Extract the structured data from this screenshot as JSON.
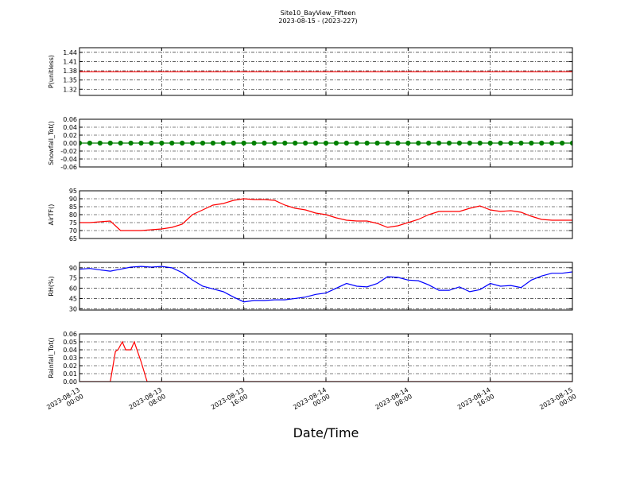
{
  "title": "Site10_BayView_Fifteen",
  "subtitle": "2023-08-15 - (2023-227)",
  "xlabel": "Date/Time",
  "xlim": [
    "2023-08-13 00:00",
    "2023-08-15 00:00"
  ],
  "xticks": [
    "2023-08-13 00:00",
    "2023-08-13 08:00",
    "2023-08-13 16:00",
    "2023-08-14 00:00",
    "2023-08-14 08:00",
    "2023-08-14 16:00",
    "2023-08-15 00:00"
  ],
  "grid": true,
  "x": [
    "2023-08-13 00:00",
    "2023-08-13 01:00",
    "2023-08-13 02:00",
    "2023-08-13 03:00",
    "2023-08-13 04:00",
    "2023-08-13 05:00",
    "2023-08-13 06:00",
    "2023-08-13 07:00",
    "2023-08-13 08:00",
    "2023-08-13 09:00",
    "2023-08-13 10:00",
    "2023-08-13 11:00",
    "2023-08-13 12:00",
    "2023-08-13 13:00",
    "2023-08-13 14:00",
    "2023-08-13 15:00",
    "2023-08-13 16:00",
    "2023-08-13 17:00",
    "2023-08-13 18:00",
    "2023-08-13 19:00",
    "2023-08-13 20:00",
    "2023-08-13 21:00",
    "2023-08-13 22:00",
    "2023-08-13 23:00",
    "2023-08-14 00:00",
    "2023-08-14 01:00",
    "2023-08-14 02:00",
    "2023-08-14 03:00",
    "2023-08-14 04:00",
    "2023-08-14 05:00",
    "2023-08-14 06:00",
    "2023-08-14 07:00",
    "2023-08-14 08:00",
    "2023-08-14 09:00",
    "2023-08-14 10:00",
    "2023-08-14 11:00",
    "2023-08-14 12:00",
    "2023-08-14 13:00",
    "2023-08-14 14:00",
    "2023-08-14 15:00",
    "2023-08-14 16:00",
    "2023-08-14 17:00",
    "2023-08-14 18:00",
    "2023-08-14 19:00",
    "2023-08-14 20:00",
    "2023-08-14 21:00",
    "2023-08-14 22:00",
    "2023-08-14 23:00",
    "2023-08-15 00:00"
  ],
  "chart_data": [
    {
      "type": "line",
      "ylabel": "P(unitless)",
      "ylim": [
        1.3,
        1.455
      ],
      "yticks": [
        1.32,
        1.35,
        1.38,
        1.41,
        1.44
      ],
      "series": [
        {
          "color": "#ff0000",
          "values": [
            1.377,
            1.377,
            1.377,
            1.377,
            1.377,
            1.377,
            1.377,
            1.377,
            1.377,
            1.377,
            1.377,
            1.377,
            1.377,
            1.377,
            1.377,
            1.377,
            1.377,
            1.377,
            1.377,
            1.377,
            1.377,
            1.377,
            1.377,
            1.377,
            1.377,
            1.377,
            1.377,
            1.377,
            1.377,
            1.377,
            1.377,
            1.377,
            1.377,
            1.377,
            1.377,
            1.377,
            1.377,
            1.377,
            1.377,
            1.377,
            1.377,
            1.377,
            1.377,
            1.377,
            1.377,
            1.377,
            1.377,
            1.377,
            1.377
          ]
        }
      ]
    },
    {
      "type": "line",
      "ylabel": "Snowfall_Tot()",
      "ylim": [
        -0.06,
        0.06
      ],
      "yticks": [
        -0.06,
        -0.04,
        -0.02,
        {
          "value": 0,
          "label": "0.00"
        },
        0.02,
        0.04,
        0.06
      ],
      "markers": true,
      "series": [
        {
          "color": "#008000",
          "values": [
            0,
            0,
            0,
            0,
            0,
            0,
            0,
            0,
            0,
            0,
            0,
            0,
            0,
            0,
            0,
            0,
            0,
            0,
            0,
            0,
            0,
            0,
            0,
            0,
            0,
            0,
            0,
            0,
            0,
            0,
            0,
            0,
            0,
            0,
            0,
            0,
            0,
            0,
            0,
            0,
            0,
            0,
            0,
            0,
            0,
            0,
            0,
            0,
            0
          ]
        }
      ]
    },
    {
      "type": "line",
      "ylabel": "AirTF()",
      "ylim": [
        65,
        95
      ],
      "yticks": [
        65,
        70,
        75,
        80,
        85,
        90,
        95
      ],
      "series": [
        {
          "color": "#ff0000",
          "values": [
            75,
            75,
            75.5,
            76,
            70,
            70,
            70,
            70.5,
            71,
            72,
            74,
            80,
            83,
            86,
            87,
            89,
            90,
            89.5,
            89.5,
            89,
            86,
            84,
            83,
            81,
            80,
            78,
            76.5,
            76,
            76,
            74.5,
            72,
            73,
            75,
            77,
            80,
            82,
            82,
            82,
            84,
            85.5,
            83,
            82,
            82.5,
            81.5,
            79,
            77,
            76.5,
            76.5,
            76.5
          ]
        }
      ]
    },
    {
      "type": "line",
      "ylabel": "RH(%)",
      "ylim": [
        28,
        98
      ],
      "yticks": [
        30,
        45,
        60,
        75,
        90
      ],
      "series": [
        {
          "color": "#0000ff",
          "values": [
            88,
            89,
            87,
            85,
            88,
            91,
            92,
            91,
            92,
            90,
            83,
            72,
            63,
            59,
            55,
            47,
            40,
            42,
            42,
            43,
            43,
            45,
            47,
            51,
            53,
            60,
            67,
            63,
            62,
            67,
            77,
            76,
            72,
            71,
            65,
            57,
            57,
            62,
            55,
            58,
            67,
            63,
            64,
            61,
            72,
            78,
            82,
            82,
            84
          ]
        }
      ]
    },
    {
      "type": "line",
      "ylabel": "Rainfall_Tot()",
      "ylim": [
        0,
        0.06
      ],
      "yticks": [
        {
          "value": 0,
          "label": "0.00"
        },
        0.01,
        0.02,
        0.03,
        0.04,
        0.05,
        0.06
      ],
      "x": [
        "2023-08-13 00:00",
        "2023-08-13 03:00",
        "2023-08-13 03:30",
        "2023-08-13 03:45",
        "2023-08-13 04:10",
        "2023-08-13 04:30",
        "2023-08-13 05:00",
        "2023-08-13 05:20",
        "2023-08-13 06:00",
        "2023-08-13 06:35",
        "2023-08-15 00:00"
      ],
      "series": [
        {
          "color": "#ff0000",
          "values": [
            0,
            0,
            0.038,
            0.04,
            0.05,
            0.04,
            0.04,
            0.05,
            0.025,
            0,
            0
          ]
        }
      ]
    }
  ]
}
